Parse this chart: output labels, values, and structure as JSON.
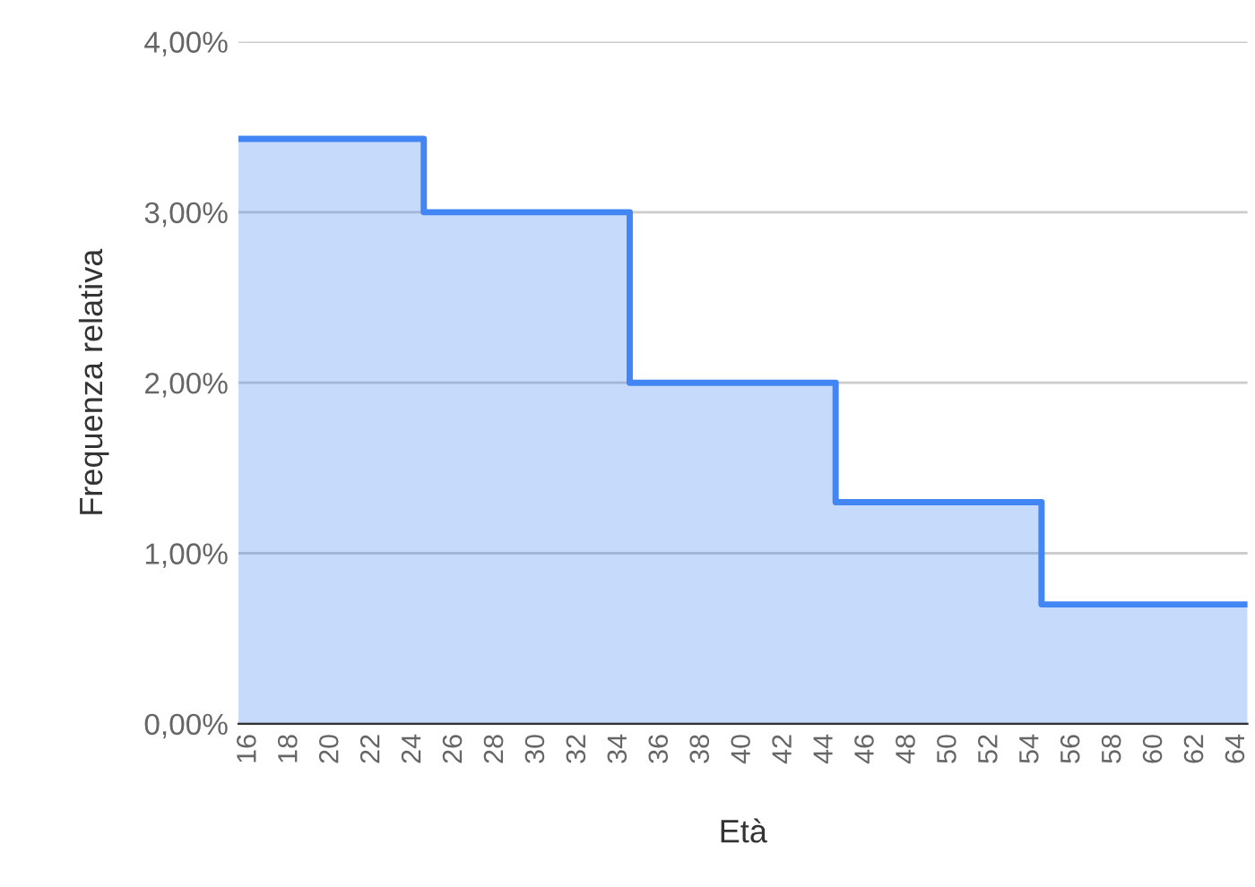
{
  "chart_data": {
    "type": "area",
    "xlabel": "Età",
    "ylabel": "Frequenza relativa",
    "x": [
      15.5,
      24.5,
      24.5,
      34.5,
      34.5,
      44.5,
      44.5,
      54.5,
      54.5,
      64.5
    ],
    "series": [
      {
        "color": "#4285f4",
        "values": [
          3.43,
          3.43,
          3.0,
          3.0,
          2.0,
          2.0,
          1.3,
          1.3,
          0.7,
          0.7
        ]
      }
    ],
    "xlim": [
      15.5,
      64.5
    ],
    "xticks": [
      16,
      18,
      20,
      22,
      24,
      26,
      28,
      30,
      32,
      34,
      36,
      38,
      40,
      42,
      44,
      46,
      48,
      50,
      52,
      54,
      56,
      58,
      60,
      62,
      64
    ],
    "ylim": [
      0,
      4
    ],
    "yticks": [
      {
        "value": 0,
        "label": "0,00%"
      },
      {
        "value": 1,
        "label": "1,00%"
      },
      {
        "value": 2,
        "label": "2,00%"
      },
      {
        "value": 3,
        "label": "3,00%"
      },
      {
        "value": 4,
        "label": "4,00%"
      }
    ],
    "grid": "y",
    "legend": false
  }
}
